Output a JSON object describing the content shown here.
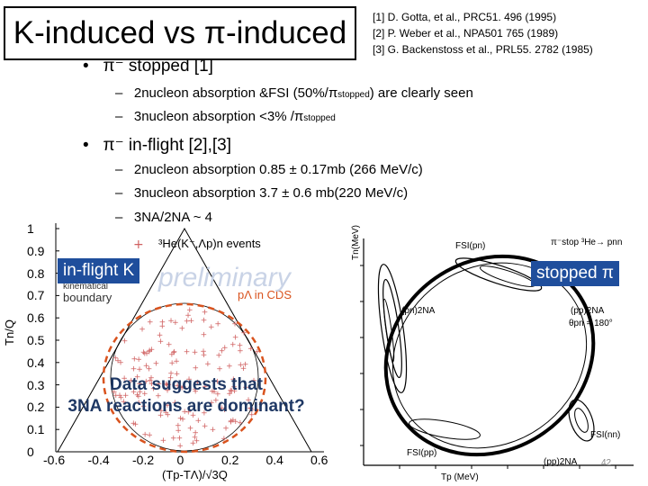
{
  "title": "K-induced vs π-induced",
  "references": [
    "[1] D. Gotta, et al., PRC51. 496 (1995)",
    "[2] P. Weber et al., NPA501 765 (1989)",
    "[3] G. Backenstoss et al., PRL55. 2782 (1985)"
  ],
  "bullets": {
    "b1": "π⁻ stopped [1]",
    "b1_items": [
      {
        "text": "2nucleon absorption &FSI (50%/π",
        "sub": "stopped",
        "after": ") are clearly seen"
      },
      {
        "text": "3nucleon absorption <3% /π",
        "sub": "stopped",
        "after": ""
      }
    ],
    "b2": "π⁻ in-flight [2],[3]",
    "b2_items": [
      "2nucleon absorption 0.85 ± 0.17mb (266 MeV/c)",
      "3nucleon absorption 3.7 ± 0.6 mb(220 MeV/c)",
      "3NA/2NA ~ 4"
    ]
  },
  "left_plot": {
    "legend": "³He(K⁻,Λp)n events",
    "boundary_label_1": "kinematical",
    "boundary_label_2": "boundary",
    "pa_label": "pΛ in CDS",
    "y_label": "Tn/Q",
    "x_label": "(Tp-TΛ)/√3Q",
    "y_ticks": [
      "1",
      "0.9",
      "0.8",
      "0.7",
      "0.6",
      "0.5",
      "0.4",
      "0.3",
      "0.2",
      "0.1",
      "0"
    ],
    "x_ticks": [
      "-0.6",
      "-0.4",
      "-0.2",
      "0",
      "0.2",
      "0.4",
      "0.6"
    ],
    "badge": "in-flight K",
    "watermark": "preliminary",
    "overlay_line1": "Data suggests that",
    "overlay_line2": "3NA reactions are dominant?"
  },
  "right_plot": {
    "y_axis": "Tn(MeV)",
    "reaction": "π⁻stop ³He→ pnn",
    "fsi_pn": "FSI(pn)",
    "fsi_nn": "FSI(nn)",
    "fsi_pp": "FSI(pp)",
    "pn2na": "(pn)2NA",
    "pp2na": "(pp)2NA",
    "angle": "θpn = 180°",
    "pp2na_bottom": "(pp)2NA",
    "x_axis": "Tp (MeV)",
    "badge": "stopped π",
    "page": "42"
  },
  "colors": {
    "badge_bg": "#1f4e9c",
    "overlay_text": "#1f3864",
    "scatter": "#d06060",
    "dashed": "#d9531e"
  }
}
